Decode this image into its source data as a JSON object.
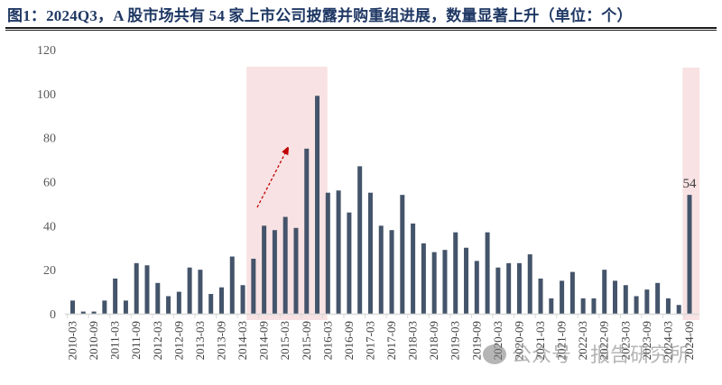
{
  "title": "图1：2024Q3，A 股市场共有 54 家上市公司披露并购重组进展，数量显著上升（单位：个）",
  "watermark": "公众号 · 报告研究所",
  "colors": {
    "bar": "#44546a",
    "highlight": "#f8e2e3",
    "arrow": "#c00000",
    "axis": "#d9d9d9",
    "title": "#1f3864"
  },
  "chart_data": {
    "type": "bar",
    "title": "2024Q3，A 股市场共有 54 家上市公司披露并购重组进展，数量显著上升（单位：个）",
    "xlabel": "",
    "ylabel": "个",
    "ylim": [
      0,
      120
    ],
    "yticks": [
      0,
      20,
      40,
      60,
      80,
      100,
      120
    ],
    "grid": false,
    "legend": null,
    "categories": [
      "2010-03",
      "2010-06",
      "2010-09",
      "2010-12",
      "2011-03",
      "2011-06",
      "2011-09",
      "2011-12",
      "2012-03",
      "2012-06",
      "2012-09",
      "2012-12",
      "2013-03",
      "2013-06",
      "2013-09",
      "2013-12",
      "2014-03",
      "2014-06",
      "2014-09",
      "2014-12",
      "2015-03",
      "2015-06",
      "2015-09",
      "2015-12",
      "2016-03",
      "2016-06",
      "2016-09",
      "2016-12",
      "2017-03",
      "2017-06",
      "2017-09",
      "2017-12",
      "2018-03",
      "2018-06",
      "2018-09",
      "2018-12",
      "2019-03",
      "2019-06",
      "2019-09",
      "2019-12",
      "2020-03",
      "2020-06",
      "2020-09",
      "2020-12",
      "2021-03",
      "2021-06",
      "2021-09",
      "2021-12",
      "2022-03",
      "2022-06",
      "2022-09",
      "2022-12",
      "2023-03",
      "2023-06",
      "2023-09",
      "2023-12",
      "2024-03",
      "2024-06",
      "2024-09"
    ],
    "x_tick_labels": [
      "2010-03",
      "2010-09",
      "2011-03",
      "2011-09",
      "2012-03",
      "2012-09",
      "2013-03",
      "2013-09",
      "2014-03",
      "2014-09",
      "2015-03",
      "2015-09",
      "2016-03",
      "2016-09",
      "2017-03",
      "2017-09",
      "2018-03",
      "2018-09",
      "2019-03",
      "2019-09",
      "2020-03",
      "2020-09",
      "2021-03",
      "2021-09",
      "2022-03",
      "2022-09",
      "2023-03",
      "2023-09",
      "2024-03",
      "2024-09"
    ],
    "values": [
      6,
      1,
      1,
      6,
      16,
      6,
      23,
      22,
      14,
      8,
      10,
      21,
      20,
      9,
      12,
      26,
      13,
      25,
      40,
      38,
      44,
      39,
      75,
      99,
      55,
      56,
      46,
      67,
      55,
      40,
      38,
      54,
      41,
      32,
      28,
      29,
      37,
      30,
      24,
      37,
      21,
      23,
      23,
      27,
      16,
      7,
      15,
      19,
      7,
      7,
      20,
      15,
      13,
      8,
      11,
      14,
      7,
      4,
      54
    ],
    "annotations": [
      {
        "type": "highlight",
        "from": "2014-06",
        "to": "2015-12"
      },
      {
        "type": "arrow",
        "direction": "up-right",
        "within": "2014-06..2015-12"
      },
      {
        "type": "highlight",
        "from": "2024-09",
        "to": "2024-09"
      },
      {
        "type": "data_label",
        "category": "2024-09",
        "text": "54"
      }
    ]
  }
}
